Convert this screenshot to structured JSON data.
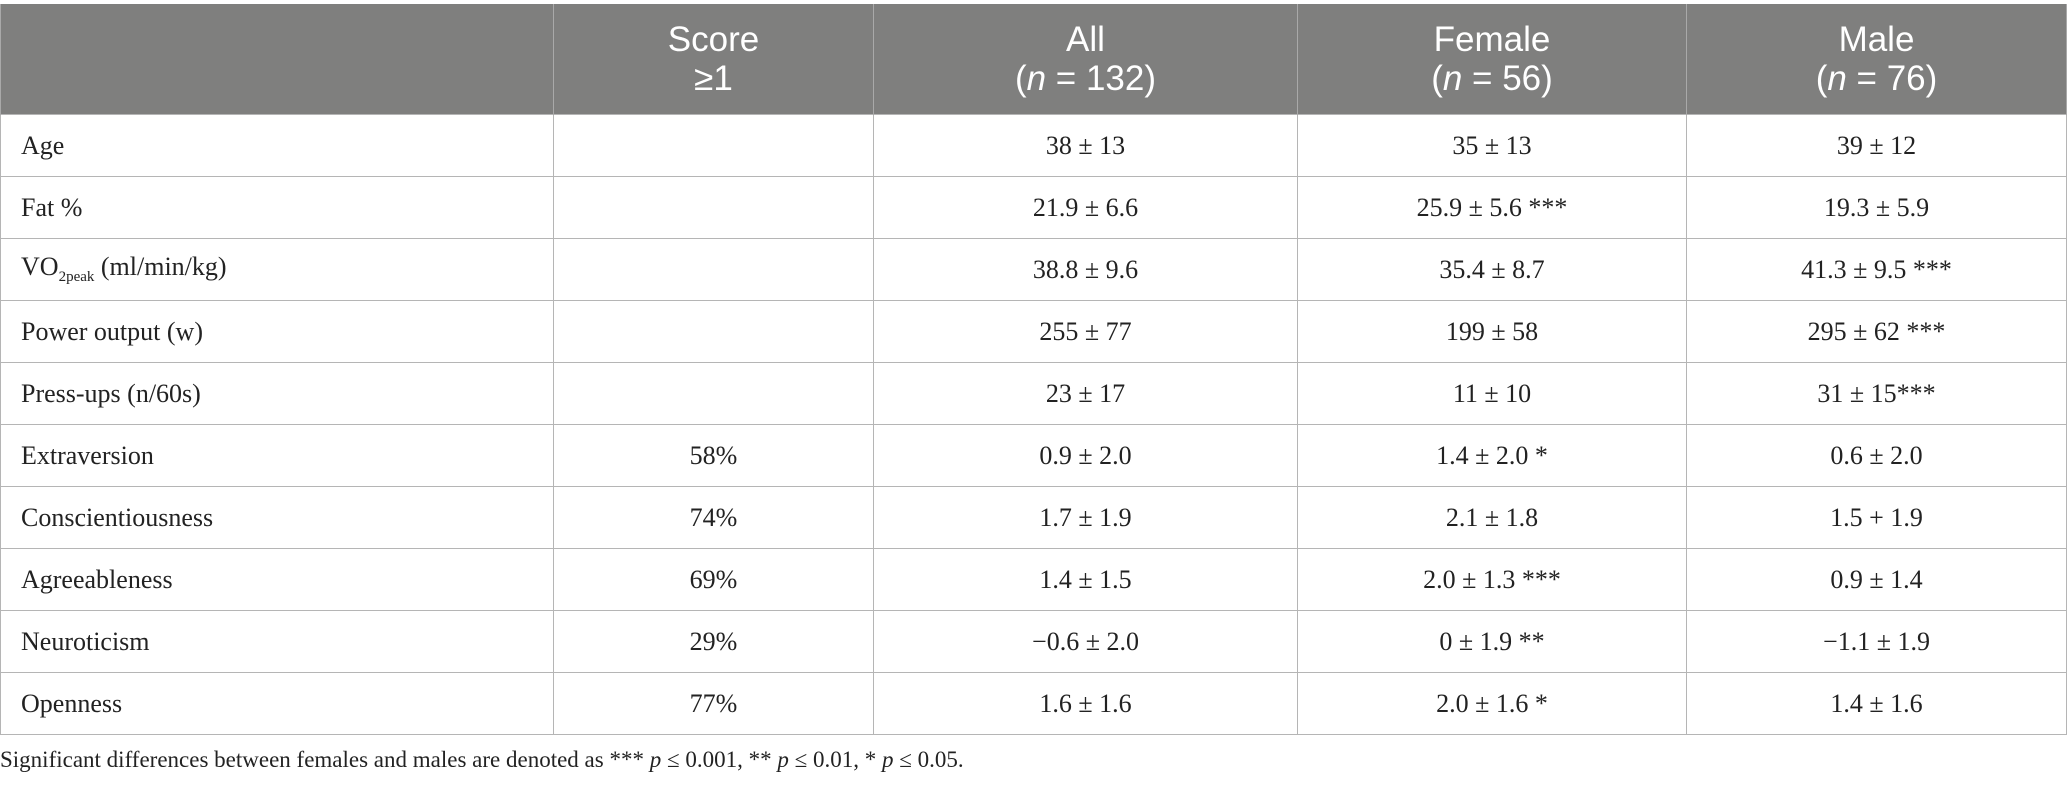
{
  "headers": {
    "label": "",
    "score": {
      "line1": "Score",
      "line2": "≥1"
    },
    "all": {
      "line1": "All",
      "n_pre": "(",
      "n_var": "n",
      "n_rest": " = 132)"
    },
    "female": {
      "line1": "Female",
      "n_pre": "(",
      "n_var": "n",
      "n_rest": " = 56)"
    },
    "male": {
      "line1": "Male",
      "n_pre": "(",
      "n_var": "n",
      "n_rest": " = 76)"
    }
  },
  "rows": [
    {
      "label": "Age",
      "score": "",
      "all": "38 ± 13",
      "female": "35 ± 13",
      "male": "39 ± 12"
    },
    {
      "label": "Fat %",
      "score": "",
      "all": "21.9 ± 6.6",
      "female": "25.9 ± 5.6 ***",
      "male": "19.3 ± 5.9"
    },
    {
      "label_main": "VO",
      "label_sub": "2peak",
      "label_rest": " (ml/min/kg)",
      "score": "",
      "all": "38.8 ± 9.6",
      "female": "35.4 ± 8.7",
      "male": "41.3 ± 9.5 ***"
    },
    {
      "label": "Power output (w)",
      "score": "",
      "all": "255 ± 77",
      "female": "199 ± 58",
      "male": "295 ± 62 ***"
    },
    {
      "label": "Press-ups (n/60s)",
      "score": "",
      "all": "23 ± 17",
      "female": "11 ± 10",
      "male": "31 ± 15***"
    },
    {
      "label": "Extraversion",
      "score": "58%",
      "all": "0.9 ± 2.0",
      "female": "1.4 ± 2.0 *",
      "male": "0.6 ± 2.0"
    },
    {
      "label": "Conscientiousness",
      "score": "74%",
      "all": "1.7 ± 1.9",
      "female": "2.1 ± 1.8",
      "male": "1.5 + 1.9"
    },
    {
      "label": "Agreeableness",
      "score": "69%",
      "all": "1.4 ± 1.5",
      "female": "2.0 ± 1.3 ***",
      "male": "0.9 ± 1.4"
    },
    {
      "label": "Neuroticism",
      "score": "29%",
      "all": "−0.6 ± 2.0",
      "female": "0 ± 1.9 **",
      "male": "−1.1 ± 1.9"
    },
    {
      "label": "Openness",
      "score": "77%",
      "all": "1.6 ± 1.6",
      "female": "2.0 ± 1.6 *",
      "male": "1.4 ± 1.6"
    }
  ],
  "footnote": {
    "t1": "Significant differences between females and males are denoted as *** ",
    "p1": "p",
    "t2": " ≤ 0.001, ** ",
    "p2": "p",
    "t3": " ≤ 0.01, * ",
    "p3": "p",
    "t4": " ≤ 0.05."
  }
}
